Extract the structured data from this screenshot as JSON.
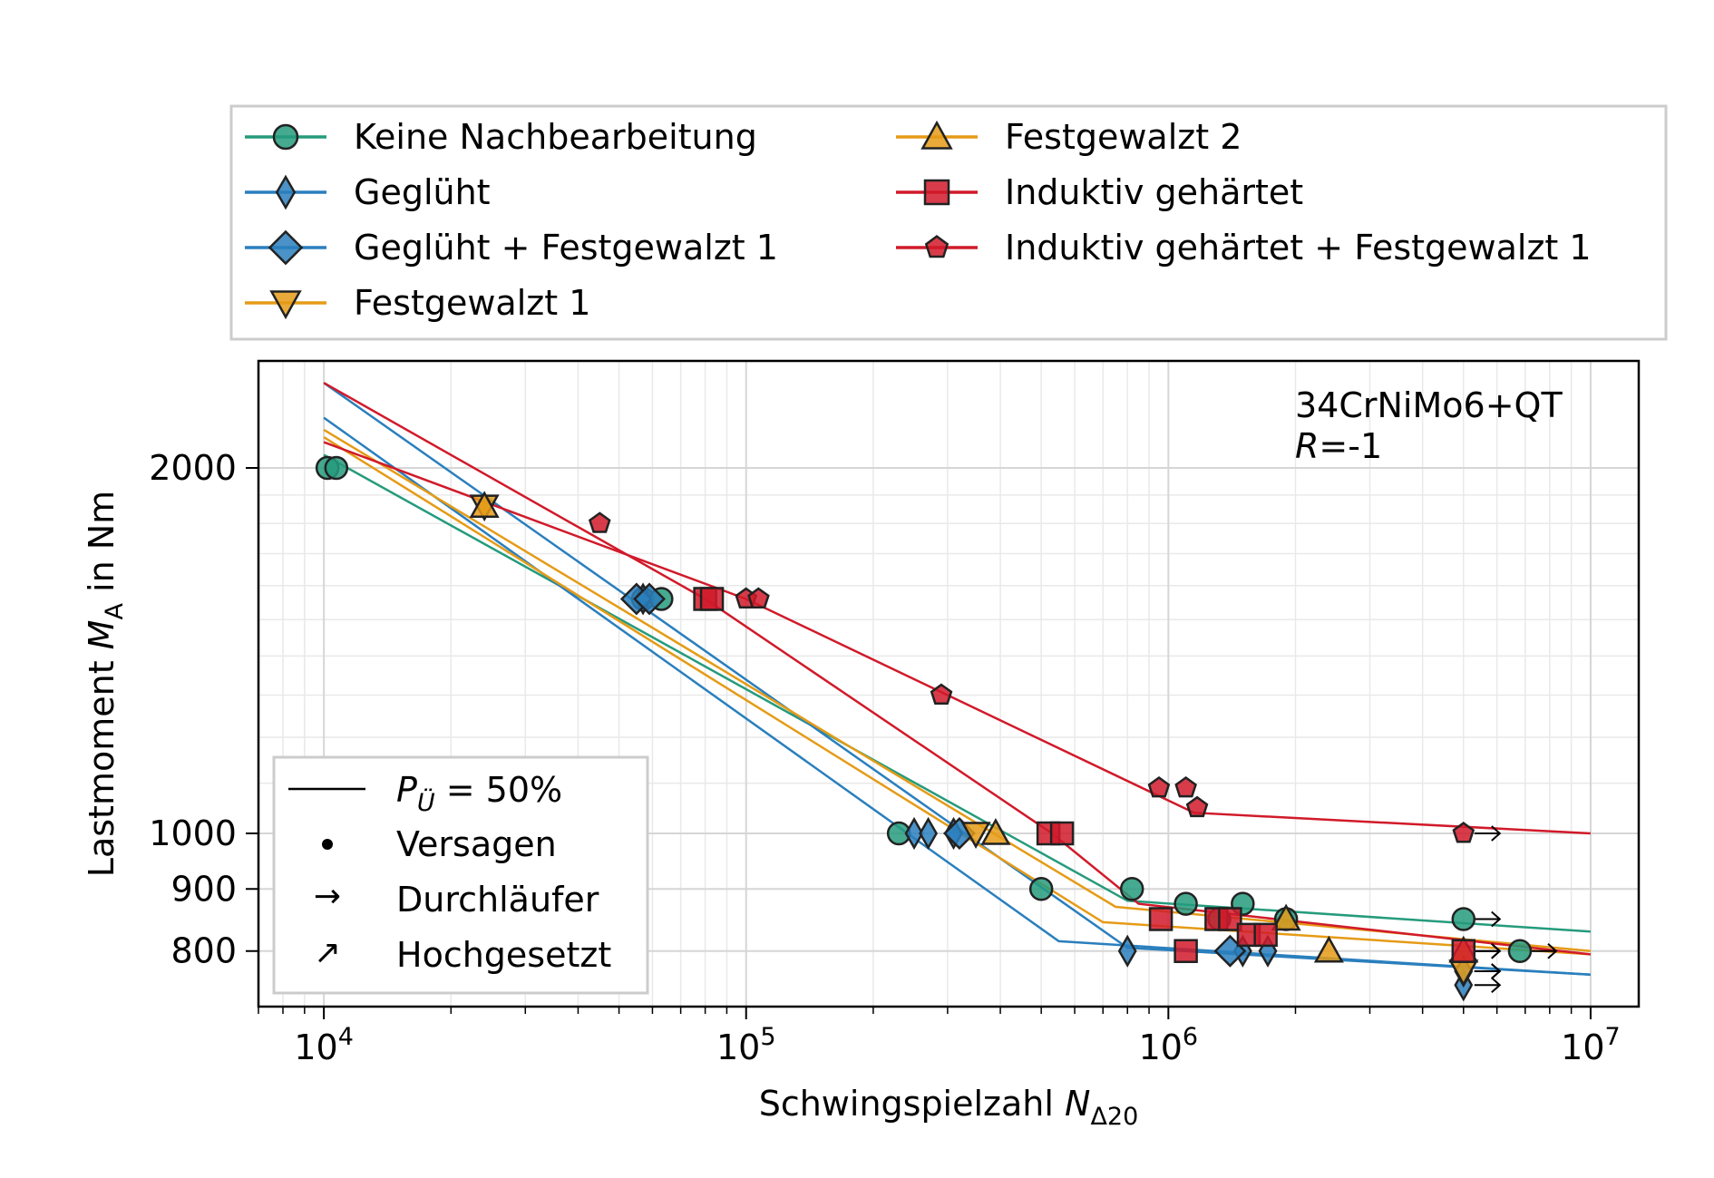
{
  "chart_data": {
    "type": "scatter",
    "title": "",
    "annotation": {
      "material": "34CrNiMo6+QT",
      "ratio_var": "R",
      "ratio_val": "=-1"
    },
    "xlabel": {
      "main": "Schwingspielzahl ",
      "var": "N",
      "sub": "Δ20"
    },
    "ylabel": {
      "main": "Lastmoment ",
      "var": "M",
      "sub": "A",
      "unit": " in Nm"
    },
    "x_scale": "log",
    "y_scale": "log",
    "xlim": [
      7000,
      13000000
    ],
    "ylim": [
      720,
      2450
    ],
    "x_ticks": [
      {
        "value": 10000,
        "base": "10",
        "exp": "4"
      },
      {
        "value": 100000,
        "base": "10",
        "exp": "5"
      },
      {
        "value": 1000000,
        "base": "10",
        "exp": "6"
      },
      {
        "value": 10000000,
        "base": "10",
        "exp": "7"
      }
    ],
    "y_ticks": [
      {
        "value": 800,
        "label": "800"
      },
      {
        "value": 900,
        "label": "900"
      },
      {
        "value": 1000,
        "label": "1000"
      },
      {
        "value": 2000,
        "label": "2000"
      }
    ],
    "grid": true,
    "colors": {
      "green": "#259b7c",
      "blue": "#2a7fbd",
      "orange": "#e59b17",
      "red": "#d11a2a"
    },
    "legend_main": {
      "placement": "above-plot",
      "entries": [
        {
          "label": "Keine Nachbearbeitung",
          "marker": "circle",
          "color": "#259b7c"
        },
        {
          "label": "Geglüht",
          "marker": "thin_diamond",
          "color": "#2a7fbd"
        },
        {
          "label": "Geglüht + Festgewalzt 1",
          "marker": "diamond",
          "color": "#2a7fbd"
        },
        {
          "label": "Festgewalzt 1",
          "marker": "triangle_down",
          "color": "#e59b17"
        },
        {
          "label": "Festgewalzt 2",
          "marker": "triangle_up",
          "color": "#e59b17"
        },
        {
          "label": "Induktiv gehärtet",
          "marker": "square",
          "color": "#d11a2a"
        },
        {
          "label": "Induktiv gehärtet + Festgewalzt 1",
          "marker": "pentagon",
          "color": "#d11a2a"
        }
      ]
    },
    "legend_symbols": {
      "placement": "lower-left",
      "line": {
        "var": "P",
        "sub": "Ü",
        "rest": " = 50%"
      },
      "entries": [
        {
          "symbol": "dot",
          "label": "Versagen"
        },
        {
          "symbol": "→",
          "label": "Durchläufer"
        },
        {
          "symbol": "↗",
          "label": "Hochgesetzt"
        }
      ]
    },
    "series": [
      {
        "name": "Keine Nachbearbeitung",
        "marker": "circle",
        "color": "#259b7c",
        "line": [
          [
            10000,
            2050
          ],
          [
            800000,
            880
          ],
          [
            10000000,
            830
          ]
        ],
        "points": [
          {
            "x": 10200,
            "y": 2000
          },
          {
            "x": 10700,
            "y": 2000
          },
          {
            "x": 57000,
            "y": 1560
          },
          {
            "x": 63000,
            "y": 1560
          },
          {
            "x": 230000,
            "y": 1000
          },
          {
            "x": 500000,
            "y": 900
          },
          {
            "x": 820000,
            "y": 900
          },
          {
            "x": 1100000,
            "y": 875
          },
          {
            "x": 1500000,
            "y": 875
          },
          {
            "x": 1320000,
            "y": 850
          },
          {
            "x": 1900000,
            "y": 850
          },
          {
            "x": 5000000,
            "y": 850,
            "runout": true
          },
          {
            "x": 6800000,
            "y": 800,
            "runout": true
          }
        ]
      },
      {
        "name": "Geglüht",
        "marker": "thin_diamond",
        "color": "#2a7fbd",
        "line": [
          [
            10000,
            2200
          ],
          [
            550000,
            815
          ],
          [
            10000000,
            765
          ]
        ],
        "points": [
          {
            "x": 57000,
            "y": 1560
          },
          {
            "x": 250000,
            "y": 1000
          },
          {
            "x": 270000,
            "y": 1000
          },
          {
            "x": 310000,
            "y": 1000
          },
          {
            "x": 800000,
            "y": 800
          },
          {
            "x": 1500000,
            "y": 800
          },
          {
            "x": 1720000,
            "y": 800
          },
          {
            "x": 5000000,
            "y": 750,
            "runout": true
          },
          {
            "x": 5000000,
            "y": 770,
            "runout": true
          }
        ]
      },
      {
        "name": "Geglüht + Festgewalzt 1",
        "marker": "diamond",
        "color": "#2a7fbd",
        "line": [
          [
            10000,
            2350
          ],
          [
            800000,
            805
          ],
          [
            10000000,
            765
          ]
        ],
        "points": [
          {
            "x": 55000,
            "y": 1560
          },
          {
            "x": 59000,
            "y": 1560
          },
          {
            "x": 320000,
            "y": 1000
          },
          {
            "x": 1400000,
            "y": 800
          }
        ]
      },
      {
        "name": "Festgewalzt 1",
        "marker": "triangle_down",
        "color": "#e59b17",
        "line": [
          [
            10000,
            2120
          ],
          [
            700000,
            845
          ],
          [
            10000000,
            795
          ]
        ],
        "points": [
          {
            "x": 24000,
            "y": 1860
          },
          {
            "x": 350000,
            "y": 1000
          },
          {
            "x": 5000000,
            "y": 770,
            "runout": true
          }
        ]
      },
      {
        "name": "Festgewalzt 2",
        "marker": "triangle_up",
        "color": "#e59b17",
        "line": [
          [
            10000,
            2150
          ],
          [
            750000,
            870
          ],
          [
            10000000,
            800
          ]
        ],
        "points": [
          {
            "x": 24000,
            "y": 1860
          },
          {
            "x": 390000,
            "y": 1000
          },
          {
            "x": 1900000,
            "y": 850
          },
          {
            "x": 2400000,
            "y": 800
          },
          {
            "x": 5000000,
            "y": 800,
            "runout": true
          }
        ]
      },
      {
        "name": "Induktiv gehärtet",
        "marker": "square",
        "color": "#d11a2a",
        "line": [
          [
            10000,
            2350
          ],
          [
            80000,
            1560
          ],
          [
            530000,
            1000
          ],
          [
            850000,
            875
          ],
          [
            10000000,
            795
          ]
        ],
        "points": [
          {
            "x": 80000,
            "y": 1560
          },
          {
            "x": 83000,
            "y": 1560
          },
          {
            "x": 520000,
            "y": 1000
          },
          {
            "x": 560000,
            "y": 1000
          },
          {
            "x": 960000,
            "y": 850
          },
          {
            "x": 1100000,
            "y": 800
          },
          {
            "x": 1300000,
            "y": 850
          },
          {
            "x": 1400000,
            "y": 850
          },
          {
            "x": 1550000,
            "y": 825
          },
          {
            "x": 1700000,
            "y": 825
          },
          {
            "x": 5000000,
            "y": 800,
            "runout": true
          }
        ]
      },
      {
        "name": "Induktiv gehärtet + Festgewalzt 1",
        "marker": "pentagon",
        "color": "#d11a2a",
        "line": [
          [
            10000,
            2100
          ],
          [
            100000,
            1560
          ],
          [
            1150000,
            1040
          ],
          [
            10000000,
            1000
          ]
        ],
        "points": [
          {
            "x": 45000,
            "y": 1800
          },
          {
            "x": 100000,
            "y": 1560
          },
          {
            "x": 107000,
            "y": 1560
          },
          {
            "x": 290000,
            "y": 1300
          },
          {
            "x": 950000,
            "y": 1090
          },
          {
            "x": 1100000,
            "y": 1090
          },
          {
            "x": 1170000,
            "y": 1050
          },
          {
            "x": 5000000,
            "y": 1000,
            "runout": true
          }
        ]
      }
    ]
  }
}
